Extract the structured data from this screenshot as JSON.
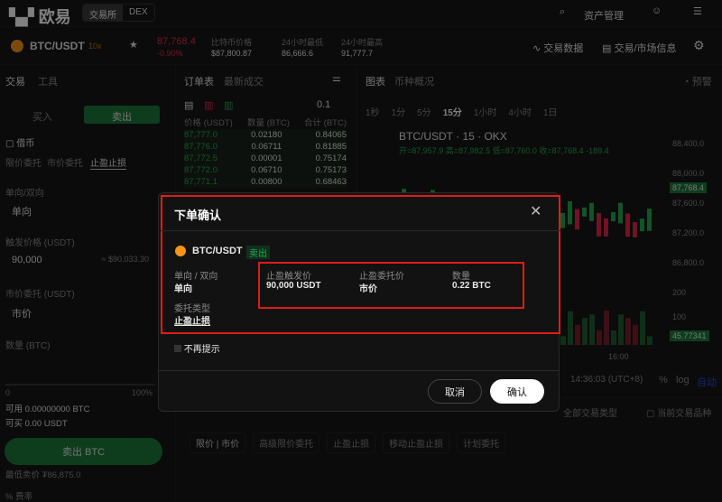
{
  "header": {
    "logo": "欧易",
    "seg": [
      "交易所",
      "DEX"
    ],
    "asset_mgmt": "资产管理"
  },
  "ticker": {
    "pair": "BTC/USDT",
    "leverage": "10x",
    "price": "87,768.4",
    "change": "-0.90%",
    "index_label": "比特币价格",
    "index_value": "$87,800.87",
    "low_label": "24小时最低",
    "low_value": "86,666.6",
    "high_label": "24小时最高",
    "high_value": "91,777.7",
    "trade_data": "交易数据",
    "market_info": "交易/市场信息"
  },
  "left": {
    "tabs": [
      "交易",
      "工具"
    ],
    "buy": "买入",
    "sell": "卖出",
    "margin": "借币",
    "order_types": [
      "限价委托",
      "市价委托",
      "止盈止损"
    ],
    "direction_label": "单向/双向",
    "direction_value": "单向",
    "trigger_label": "触发价格 (USDT)",
    "trigger_value": "90,000",
    "trigger_approx": "≈ $90,033.30",
    "market_label": "市价委托 (USDT)",
    "market_value": "市价",
    "qty_label": "数量 (BTC)",
    "slider_min": "0",
    "slider_max": "100%",
    "avail_btc": "可用 0.00000000 BTC",
    "avail_usdt": "可买 0.00 USDT",
    "sell_btn": "卖出 BTC",
    "min_sell": "最低卖价 ₮86,875.0",
    "fee": "% 费率"
  },
  "orderbook": {
    "tabs": [
      "订单表",
      "最新成交"
    ],
    "precision": "0.1",
    "headers": [
      "价格 (USDT)",
      "数量 (BTC)",
      "合计 (BTC)"
    ],
    "rows": [
      [
        "87,777.0",
        "0.02180",
        "0.84065"
      ],
      [
        "87,776.0",
        "0.06711",
        "0.81885"
      ],
      [
        "87,772.5",
        "0.00001",
        "0.75174"
      ],
      [
        "87,772.0",
        "0.06710",
        "0.75173"
      ],
      [
        "87,771.1",
        "0.00800",
        "0.68463"
      ]
    ]
  },
  "chart": {
    "tabs": [
      "图表",
      "币种概况"
    ],
    "alert": "预警",
    "intervals": [
      "1秒",
      "1分",
      "5分",
      "15分",
      "1小时",
      "4小时",
      "1日"
    ],
    "active_interval": "15分",
    "legend": "BTC/USDT · 15 · OKX",
    "ohlc": "开=87,957.9 高=87,982.5 低=87,760.0 收=87,768.4 -189.4",
    "y_ticks": [
      "88,400.0",
      "88,000.0",
      "87,600.0",
      "87,200.0",
      "86,800.0"
    ],
    "last_price": "87,768.4",
    "vol_ticks": [
      "200",
      "100"
    ],
    "last_vol": "45.77341",
    "x_tick": "16:00",
    "time": "14:36:03 (UTC+8)",
    "pct": "%",
    "log": "log",
    "auto": "自动"
  },
  "orders": {
    "filter": "全部交易类型",
    "current": "当前交易品种",
    "tabs": [
      "限价 | 市价",
      "高级限价委托",
      "止盈止损",
      "移动止盈止损",
      "计划委托"
    ]
  },
  "modal": {
    "title": "下单确认",
    "pair": "BTC/USDT",
    "side": "卖出",
    "dir_label": "单向 / 双向",
    "dir_value": "单向",
    "type_label": "委托类型",
    "type_value": "止盈止损",
    "trigger_label": "止盈触发价",
    "trigger_value": "90,000 USDT",
    "price_label": "止盈委托价",
    "price_value": "市价",
    "qty_label": "数量",
    "qty_value": "0.22 BTC",
    "no_remind": "不再提示",
    "cancel": "取消",
    "confirm": "确认"
  },
  "colors": {
    "up": "#25a750",
    "down": "#e0294a",
    "highlight": "#e01b1b"
  }
}
